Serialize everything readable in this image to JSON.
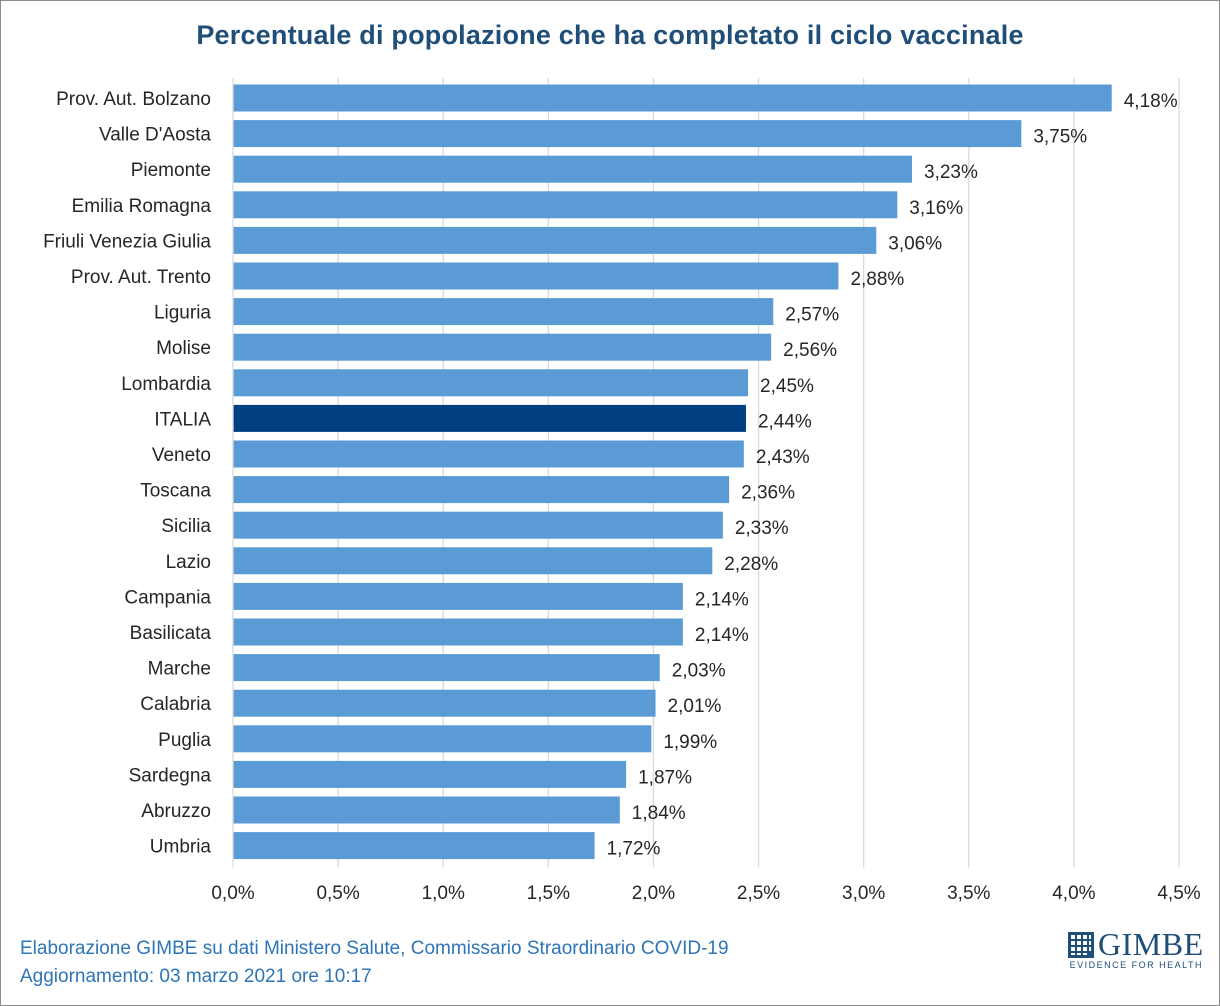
{
  "title": "Percentuale di popolazione che ha completato il ciclo vaccinale",
  "footer": {
    "line1": "Elaborazione GIMBE su dati Ministero Salute, Commissario Straordinario COVID-19",
    "line2": "Aggiornamento: 03 marzo 2021 ore 10:17"
  },
  "logo": {
    "name": "GIMBE",
    "tagline": "EVIDENCE FOR HEALTH"
  },
  "colors": {
    "bar": "#5b9bd5",
    "highlight": "#003f7f",
    "title": "#1f4e79",
    "footer": "#2e75b6",
    "grid": "#d9d9d9"
  },
  "chart_data": {
    "type": "bar",
    "orientation": "horizontal",
    "title": "Percentuale di popolazione che ha completato il ciclo vaccinale",
    "categories": [
      "Prov. Aut. Bolzano",
      "Valle D'Aosta",
      "Piemonte",
      "Emilia Romagna",
      "Friuli Venezia Giulia",
      "Prov. Aut. Trento",
      "Liguria",
      "Molise",
      "Lombardia",
      "ITALIA",
      "Veneto",
      "Toscana",
      "Sicilia",
      "Lazio",
      "Campania",
      "Basilicata",
      "Marche",
      "Calabria",
      "Puglia",
      "Sardegna",
      "Abruzzo",
      "Umbria"
    ],
    "values": [
      4.18,
      3.75,
      3.23,
      3.16,
      3.06,
      2.88,
      2.57,
      2.56,
      2.45,
      2.44,
      2.43,
      2.36,
      2.33,
      2.28,
      2.14,
      2.14,
      2.03,
      2.01,
      1.99,
      1.87,
      1.84,
      1.72
    ],
    "value_labels": [
      "4,18%",
      "3,75%",
      "3,23%",
      "3,16%",
      "3,06%",
      "2,88%",
      "2,57%",
      "2,56%",
      "2,45%",
      "2,44%",
      "2,43%",
      "2,36%",
      "2,33%",
      "2,28%",
      "2,14%",
      "2,14%",
      "2,03%",
      "2,01%",
      "1,99%",
      "1,87%",
      "1,84%",
      "1,72%"
    ],
    "highlight": "ITALIA",
    "xlim": [
      0,
      4.5
    ],
    "x_ticks": [
      0,
      0.5,
      1.0,
      1.5,
      2.0,
      2.5,
      3.0,
      3.5,
      4.0,
      4.5
    ],
    "x_tick_labels": [
      "0,0%",
      "0,5%",
      "1,0%",
      "1,5%",
      "2,0%",
      "2,5%",
      "3,0%",
      "3,5%",
      "4,0%",
      "4,5%"
    ],
    "grid": "vertical",
    "legend": "none"
  }
}
